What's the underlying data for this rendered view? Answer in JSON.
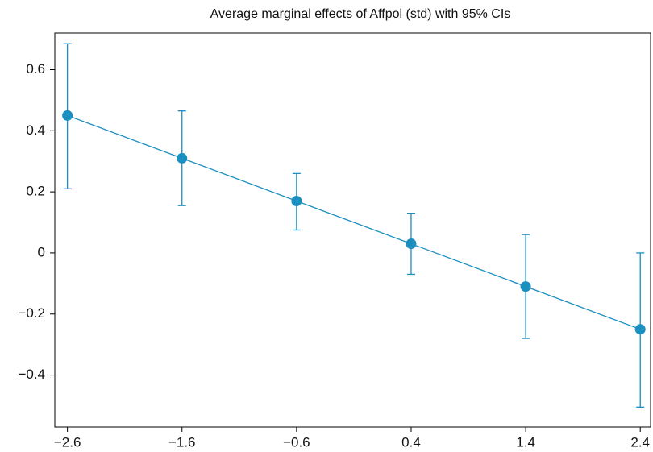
{
  "chart_data": {
    "type": "line",
    "title": "Average marginal effects of Affpol (std) with 95% CIs",
    "x": [
      -2.6,
      -1.6,
      -0.6,
      0.4,
      1.4,
      2.4
    ],
    "series": [
      {
        "color": "#1a8fc0",
        "values": [
          0.45,
          0.31,
          0.17,
          0.03,
          -0.11,
          -0.25
        ],
        "ci_low": [
          0.21,
          0.155,
          0.075,
          -0.07,
          -0.28,
          -0.505
        ],
        "ci_high": [
          0.685,
          0.465,
          0.26,
          0.13,
          0.06,
          0.0
        ]
      }
    ],
    "xlim": [
      -2.71,
      2.49
    ],
    "xticks": [
      {
        "value": -2.6,
        "label": "−2.6"
      },
      {
        "value": -1.6,
        "label": "−1.6"
      },
      {
        "value": -0.6,
        "label": "−0.6"
      },
      0.4,
      1.4,
      2.4
    ],
    "ylim": [
      -0.57,
      0.72
    ],
    "yticks": [
      {
        "value": -0.4,
        "label": "−0.4"
      },
      {
        "value": -0.2,
        "label": "−0.2"
      },
      0,
      0.2,
      0.4,
      0.6
    ],
    "grid": false
  }
}
